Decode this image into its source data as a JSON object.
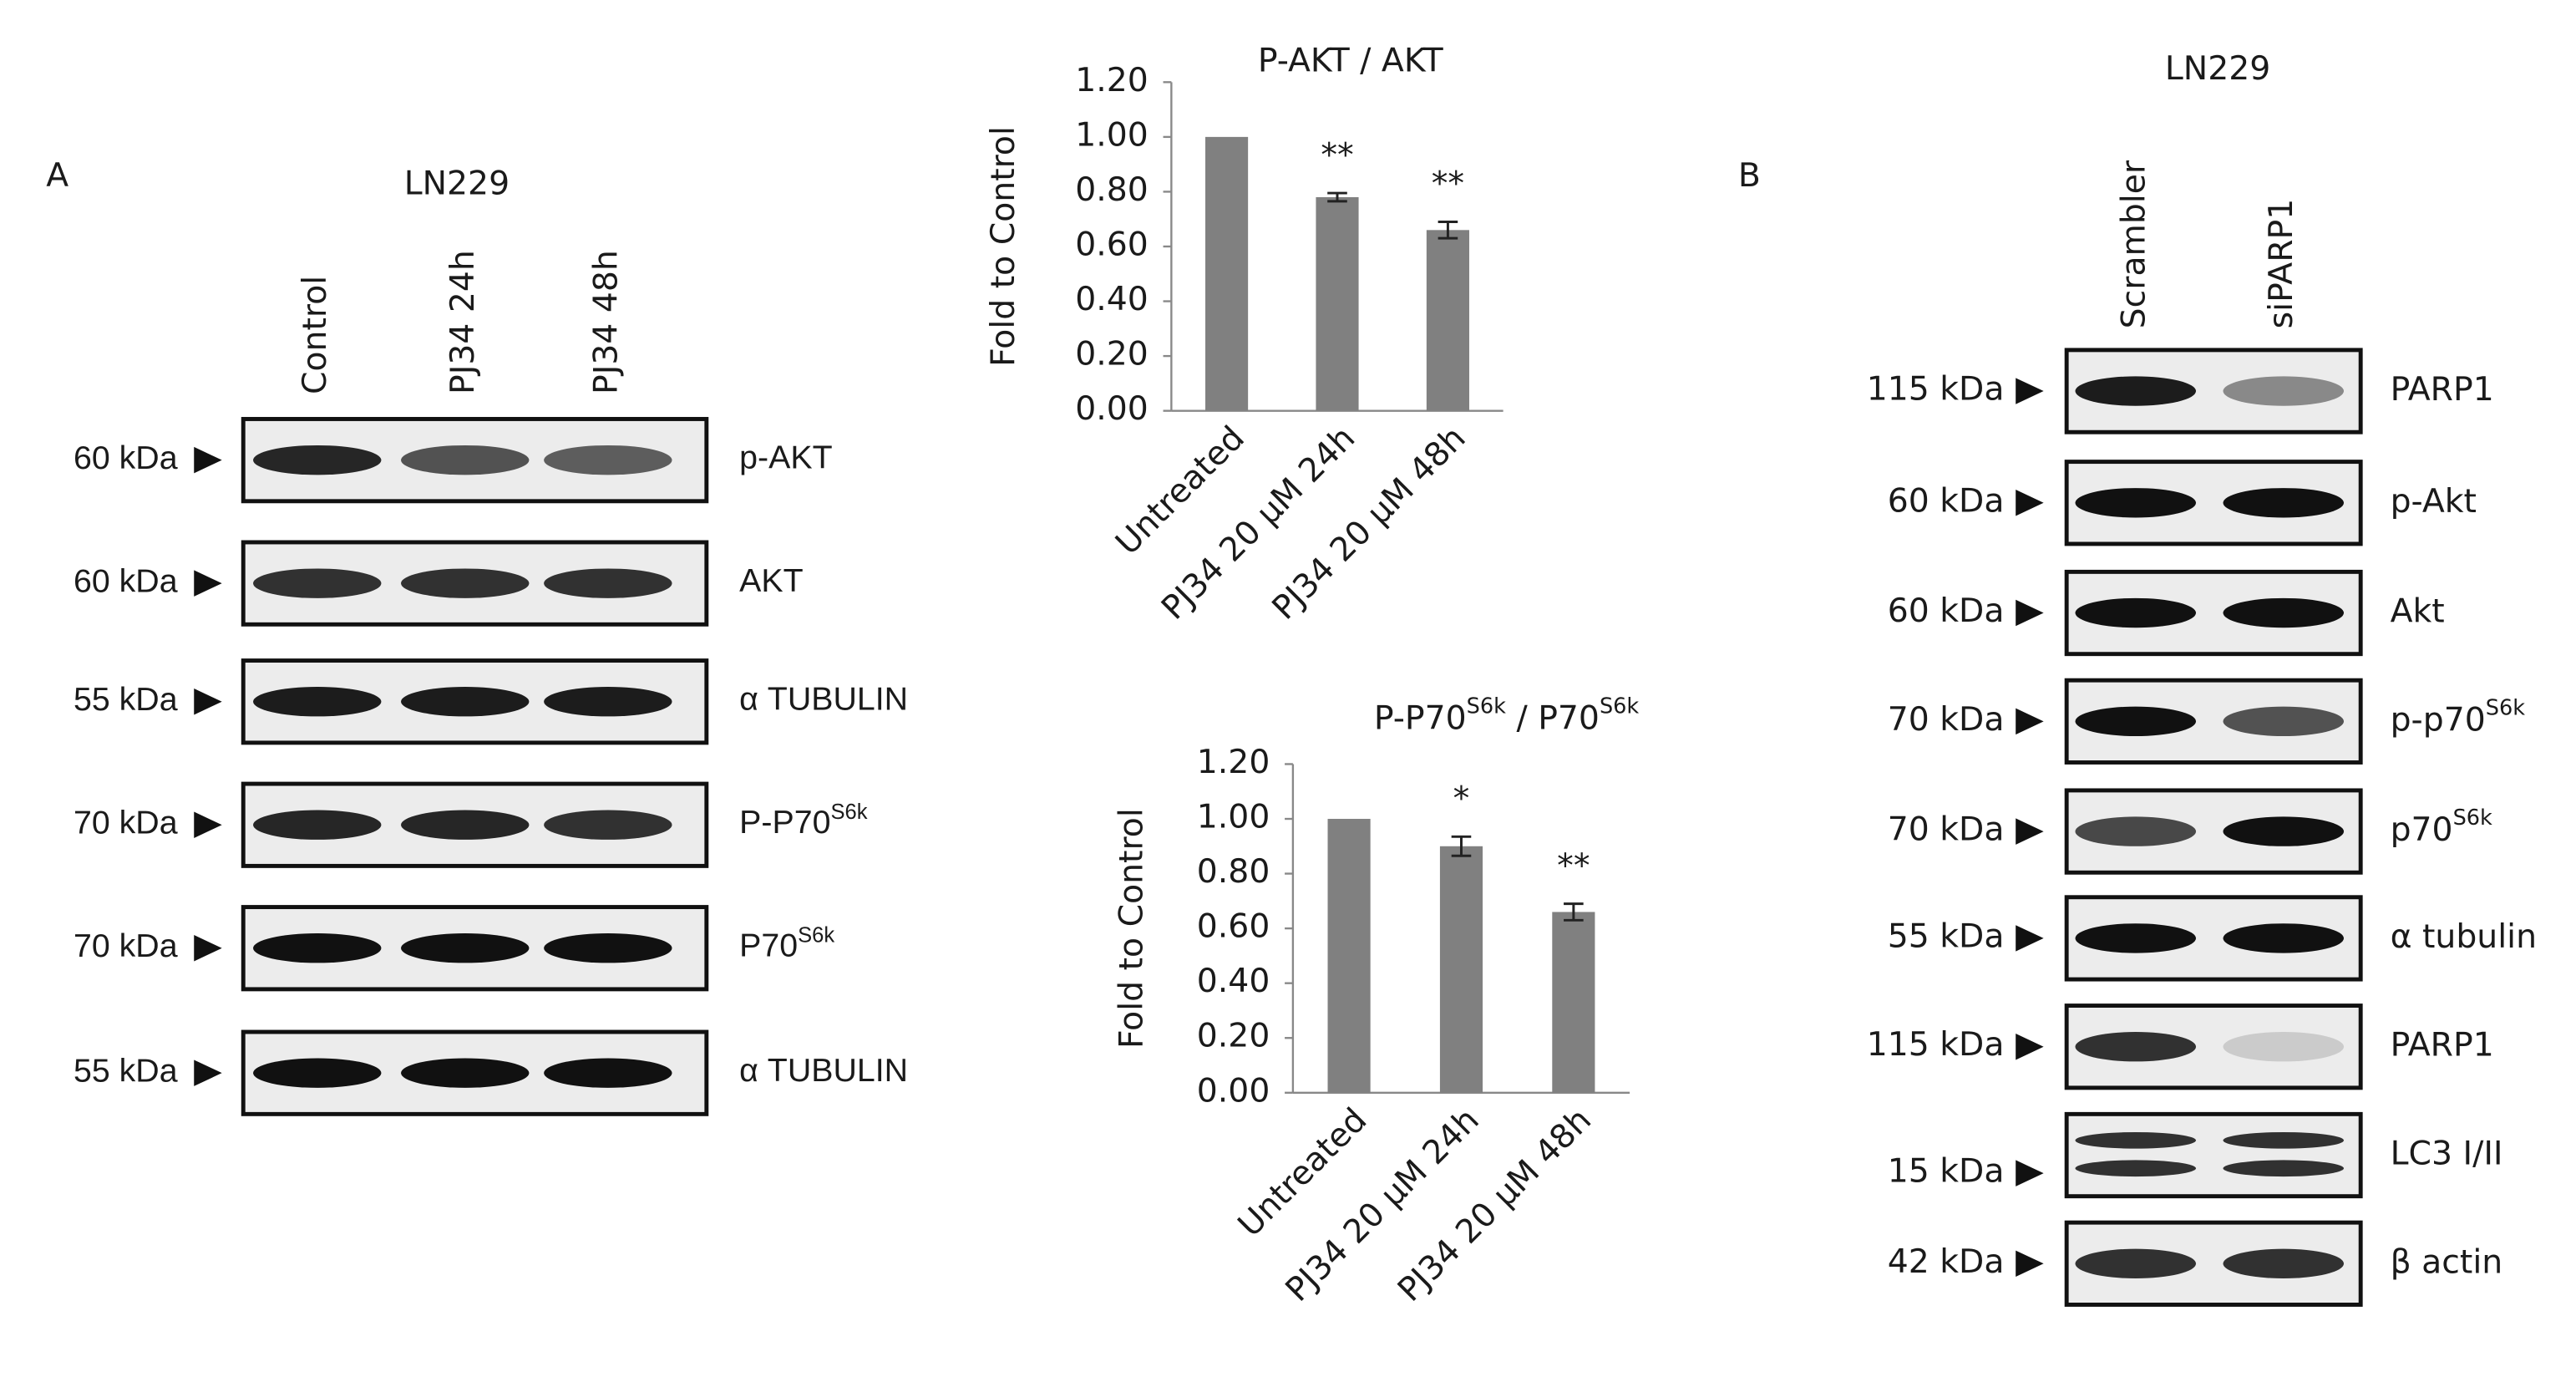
{
  "chart_data": [
    {
      "type": "bar",
      "title": [
        "P-AKT / AKT"
      ],
      "ylabel": "Fold to Control",
      "categories": [
        "Untreated",
        "PJ34 20 µM 24h",
        "PJ34 20 µM 48h"
      ],
      "values": [
        1.0,
        0.78,
        0.66
      ],
      "errors": [
        0,
        0.015,
        0.03
      ],
      "annotations": [
        null,
        "**",
        "**"
      ],
      "color": "#808080",
      "ylim": [
        0,
        1.2
      ],
      "yticks": [
        {
          "value": 0,
          "label": "0.00"
        },
        {
          "value": 0.2,
          "label": "0.20"
        },
        {
          "value": 0.4,
          "label": "0.40"
        },
        {
          "value": 0.6,
          "label": "0.60"
        },
        {
          "value": 0.8,
          "label": "0.80"
        },
        {
          "value": 1.0,
          "label": "1.00"
        },
        {
          "value": 1.2,
          "label": "1.20"
        }
      ],
      "grid": false
    },
    {
      "type": "bar",
      "title": [
        "P-P70",
        "S6k",
        " / P70",
        "S6k"
      ],
      "ylabel": "Fold to Control",
      "categories": [
        "Untreated",
        "PJ34 20 µM 24h",
        "PJ34 20 µM 48h"
      ],
      "values": [
        1.0,
        0.9,
        0.66
      ],
      "errors": [
        0,
        0.035,
        0.03
      ],
      "annotations": [
        null,
        "*",
        "**"
      ],
      "color": "#808080",
      "ylim": [
        0,
        1.2
      ],
      "yticks": [
        {
          "value": 0,
          "label": "0.00"
        },
        {
          "value": 0.2,
          "label": "0.20"
        },
        {
          "value": 0.4,
          "label": "0.40"
        },
        {
          "value": 0.6,
          "label": "0.60"
        },
        {
          "value": 0.8,
          "label": "0.80"
        },
        {
          "value": 1.0,
          "label": "1.00"
        },
        {
          "value": 1.2,
          "label": "1.20"
        }
      ],
      "grid": false
    }
  ],
  "panels": [
    {
      "letter": "A",
      "cell_line": "LN229",
      "lanes": [
        "Control",
        "PJ34 24h",
        "PJ34 48h"
      ],
      "rows": [
        {
          "size": "60 kDa",
          "label": [
            "p-AKT"
          ]
        },
        {
          "size": "60 kDa",
          "label": [
            "AKT"
          ]
        },
        {
          "size": "55 kDa",
          "label": [
            "α TUBULIN"
          ]
        },
        {
          "size": "70 kDa",
          "label": [
            "P-P70",
            "S6k"
          ]
        },
        {
          "size": "70 kDa",
          "label": [
            "P70",
            "S6k"
          ]
        },
        {
          "size": "55 kDa",
          "label": [
            "α TUBULIN"
          ]
        }
      ]
    },
    {
      "letter": "B",
      "cell_line": "LN229",
      "lanes": [
        "Scrambler",
        "siPARP1"
      ],
      "rows": [
        {
          "size": "115 kDa",
          "label": [
            "PARP1"
          ]
        },
        {
          "size": "60 kDa",
          "label": [
            "p-Akt"
          ]
        },
        {
          "size": "60 kDa",
          "label": [
            "Akt"
          ]
        },
        {
          "size": "70 kDa",
          "label": [
            "p-p70",
            "S6k"
          ]
        },
        {
          "size": "70 kDa",
          "label": [
            "p70",
            "S6k"
          ]
        },
        {
          "size": "55 kDa",
          "label": [
            "α tubulin"
          ]
        },
        {
          "size": "115 kDa",
          "label": [
            "PARP1"
          ]
        },
        {
          "size": "15 kDa",
          "label": [
            "LC3 I/II"
          ]
        },
        {
          "size": "42 kDa",
          "label": [
            "β actin"
          ]
        }
      ]
    }
  ]
}
